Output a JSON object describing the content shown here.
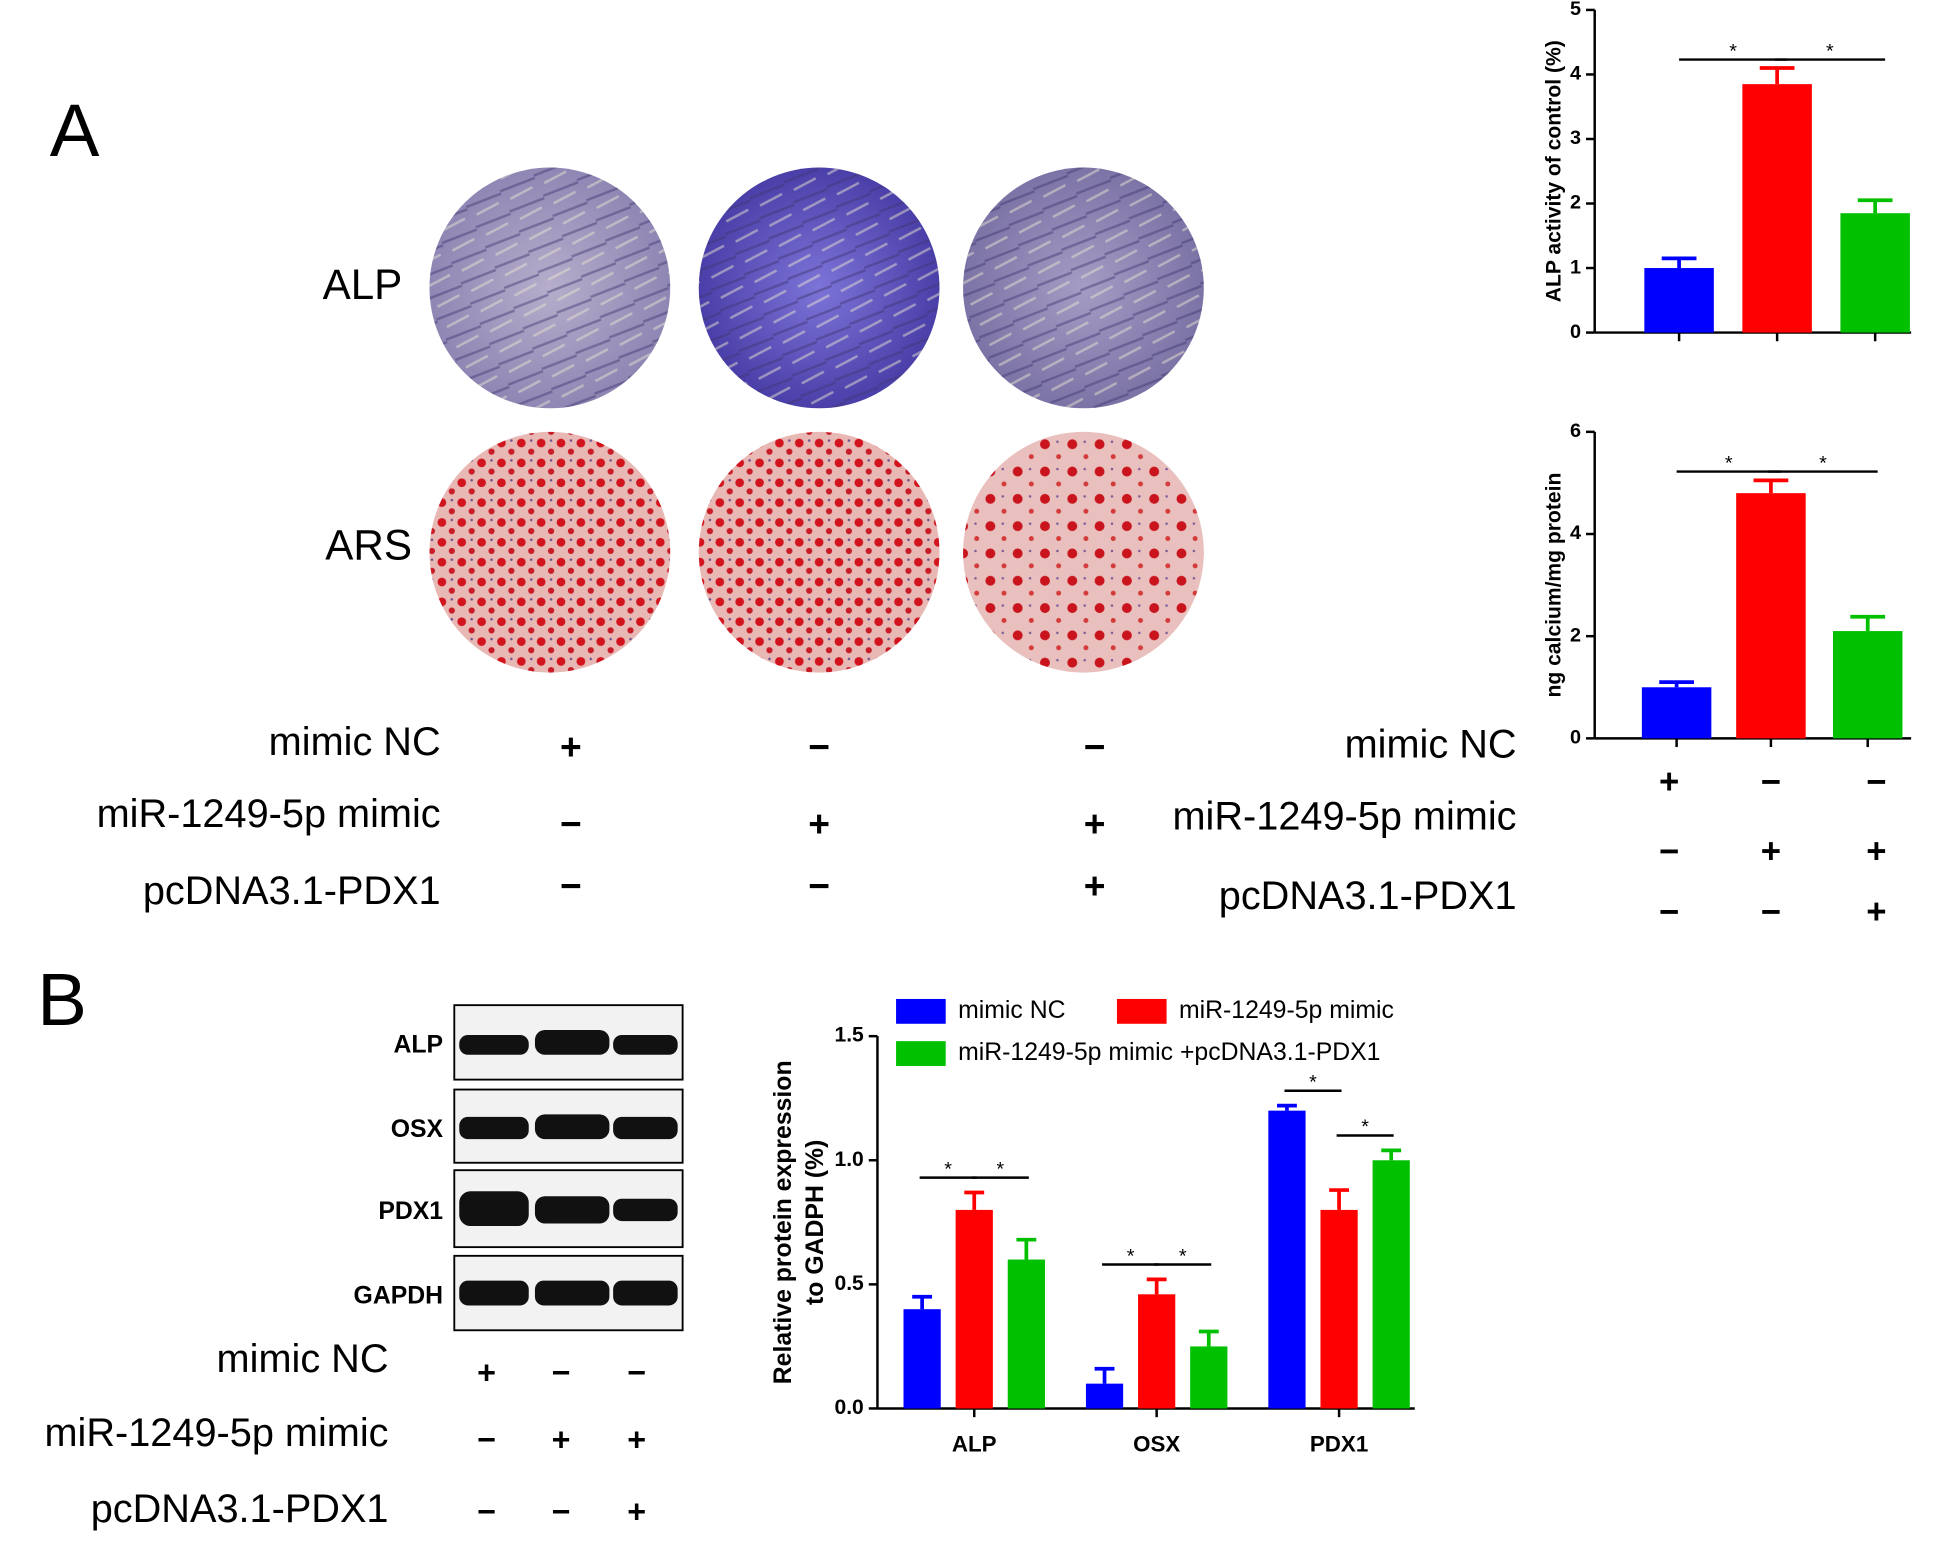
{
  "panel_labels": [
    "A",
    "B"
  ],
  "stain_labels": [
    "ALP",
    "ARS"
  ],
  "conditions": {
    "labels": [
      "mimic NC",
      "miR-1249-5p mimic",
      "pcDNA3.1-PDX1"
    ],
    "signs": [
      [
        "+",
        "−",
        "−"
      ],
      [
        "−",
        "+",
        "+"
      ],
      [
        "−",
        "−",
        "+"
      ]
    ]
  },
  "blot_labels": [
    "ALP",
    "OSX",
    "PDX1",
    "GAPDH"
  ],
  "chart_data": [
    {
      "type": "bar",
      "ylabel": "ALP activity of control (%)",
      "categories": [
        null,
        null,
        null
      ],
      "values": [
        1,
        3.85,
        1.85
      ],
      "error": [
        0.15,
        0.25,
        0.2
      ],
      "colors": [
        "#0000ff",
        "#ff0000",
        "#00c000"
      ],
      "ylim": [
        0,
        5
      ],
      "yticks": [
        0,
        1,
        2,
        3,
        4,
        5
      ],
      "annotations": [
        "*",
        "*"
      ]
    },
    {
      "type": "bar",
      "ylabel": "ng calcium/mg protein",
      "categories": [
        null,
        null,
        null
      ],
      "values": [
        1,
        4.8,
        2.1
      ],
      "error": [
        0.1,
        0.25,
        0.28
      ],
      "colors": [
        "#0000ff",
        "#ff0000",
        "#00c000"
      ],
      "ylim": [
        0,
        6
      ],
      "yticks": [
        0,
        2,
        4,
        6
      ],
      "annotations": [
        "*",
        "*"
      ]
    },
    {
      "type": "grouped_bar",
      "ylabel": [
        "Relative protein expression",
        "to GADPH (%)"
      ],
      "categories": [
        "ALP",
        "OSX",
        "PDX1"
      ],
      "series": [
        {
          "name": "mimic NC",
          "color": "#0000ff",
          "values": [
            0.4,
            0.1,
            1.2
          ],
          "error": [
            0.05,
            0.06,
            0.02
          ]
        },
        {
          "name": "miR-1249-5p mimic",
          "color": "#ff0000",
          "values": [
            0.8,
            0.46,
            0.8
          ],
          "error": [
            0.07,
            0.06,
            0.08
          ]
        },
        {
          "name": "miR-1249-5p mimic +pcDNA3.1-PDX1",
          "color": "#00c000",
          "values": [
            0.6,
            0.25,
            1.0
          ],
          "error": [
            0.08,
            0.06,
            0.04
          ]
        }
      ],
      "ylim": [
        0,
        1.5
      ],
      "yticks": [
        {
          "value": 0,
          "label": "0.0"
        },
        {
          "value": 0.5,
          "label": "0.5"
        },
        {
          "value": 1,
          "label": "1.0"
        },
        {
          "value": 1.5,
          "label": "1.5"
        }
      ],
      "annotations": [
        [
          "*",
          "*"
        ],
        [
          "*",
          "*"
        ],
        [
          "*",
          "*"
        ]
      ]
    }
  ]
}
